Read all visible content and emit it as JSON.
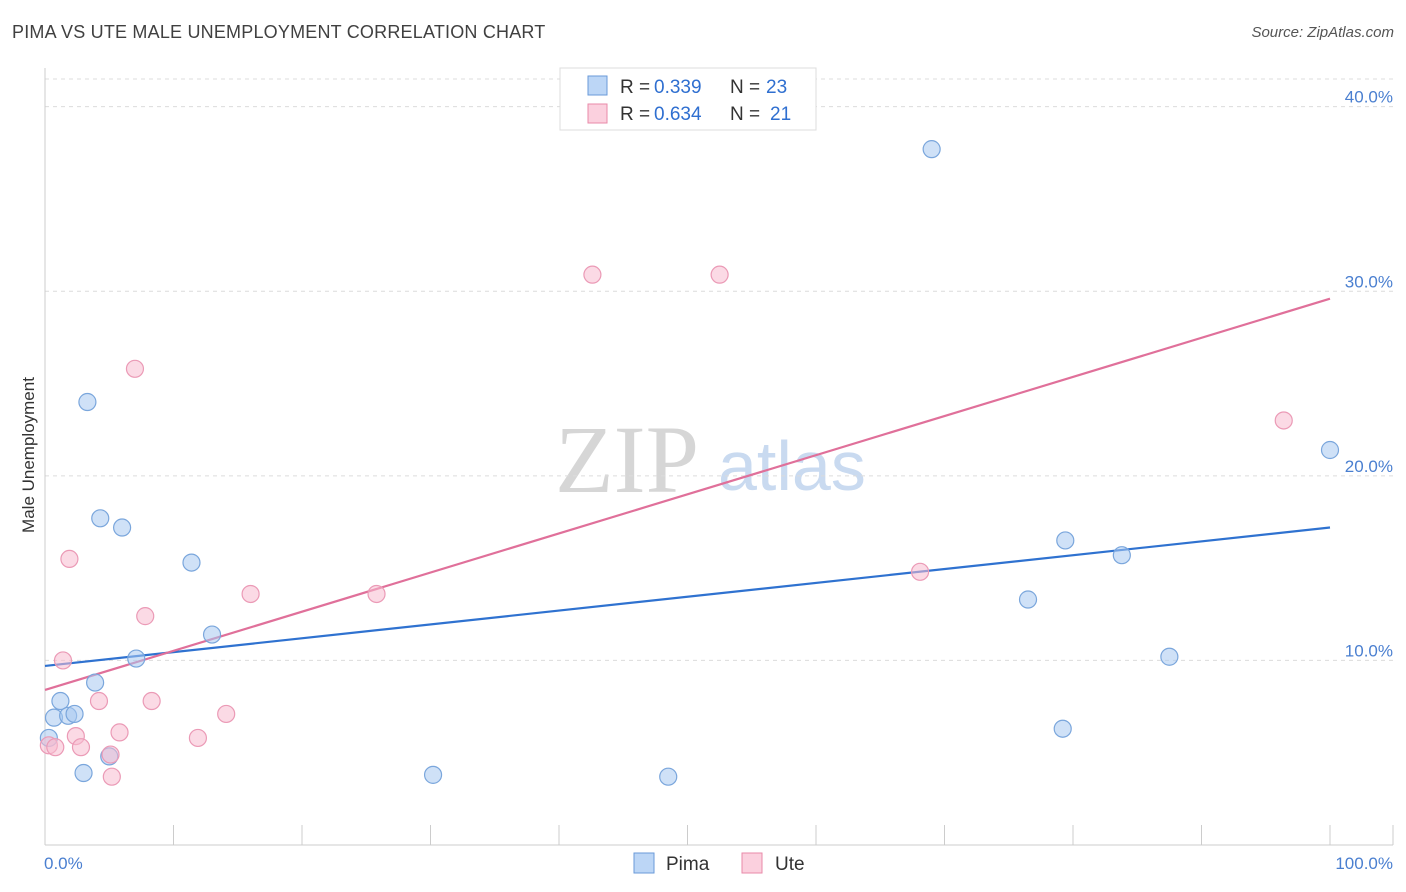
{
  "header": {
    "title": "PIMA VS UTE MALE UNEMPLOYMENT CORRELATION CHART",
    "source": "Source: ZipAtlas.com"
  },
  "watermark": {
    "zip": "ZIP",
    "atlas": "atlas"
  },
  "chart_data": {
    "type": "scatter",
    "title": "PIMA VS UTE MALE UNEMPLOYMENT CORRELATION CHART",
    "xlabel": "",
    "ylabel": "Male Unemployment",
    "xlim": [
      0,
      100
    ],
    "ylim": [
      0,
      41.5
    ],
    "x_tick_labels": [
      "0.0%",
      "100.0%"
    ],
    "y_ticks": [
      10,
      20,
      30,
      40
    ],
    "y_tick_labels": [
      "10.0%",
      "20.0%",
      "30.0%",
      "40.0%"
    ],
    "grid": true,
    "legend_position": "top-center",
    "legend": [
      {
        "name": "Pima",
        "r_label": "R =",
        "r": "0.339",
        "n_label": "N =",
        "n": "23",
        "color": "#a8c8f0",
        "stroke": "#6a9ad8"
      },
      {
        "name": "Ute",
        "r_label": "R =",
        "r": "0.634",
        "n_label": "N =",
        "n": "21",
        "color": "#f8bcd0",
        "stroke": "#e88aa8"
      }
    ],
    "series": [
      {
        "name": "Pima",
        "color": "#a8c8f0",
        "line_color": "#2f72d0",
        "trend": {
          "x": [
            0,
            100
          ],
          "y": [
            9.7,
            17.2
          ]
        },
        "points": [
          {
            "x": 0.3,
            "y": 5.8
          },
          {
            "x": 0.7,
            "y": 6.9
          },
          {
            "x": 1.2,
            "y": 7.8
          },
          {
            "x": 1.8,
            "y": 7.0
          },
          {
            "x": 2.3,
            "y": 7.1
          },
          {
            "x": 3.0,
            "y": 3.9
          },
          {
            "x": 3.3,
            "y": 24.0
          },
          {
            "x": 3.9,
            "y": 8.8
          },
          {
            "x": 4.3,
            "y": 17.7
          },
          {
            "x": 5.0,
            "y": 4.8
          },
          {
            "x": 6.0,
            "y": 17.2
          },
          {
            "x": 7.1,
            "y": 10.1
          },
          {
            "x": 11.4,
            "y": 15.3
          },
          {
            "x": 13.0,
            "y": 11.4
          },
          {
            "x": 30.2,
            "y": 3.8
          },
          {
            "x": 48.5,
            "y": 3.7
          },
          {
            "x": 69.0,
            "y": 37.7
          },
          {
            "x": 76.5,
            "y": 13.3
          },
          {
            "x": 79.2,
            "y": 6.3
          },
          {
            "x": 79.4,
            "y": 16.5
          },
          {
            "x": 83.8,
            "y": 15.7
          },
          {
            "x": 87.5,
            "y": 10.2
          },
          {
            "x": 100.0,
            "y": 21.4
          }
        ]
      },
      {
        "name": "Ute",
        "color": "#f8bcd0",
        "line_color": "#e0709a",
        "trend": {
          "x": [
            0,
            100
          ],
          "y": [
            8.4,
            29.6
          ]
        },
        "points": [
          {
            "x": 0.3,
            "y": 5.4
          },
          {
            "x": 0.8,
            "y": 5.3
          },
          {
            "x": 1.4,
            "y": 10.0
          },
          {
            "x": 1.9,
            "y": 15.5
          },
          {
            "x": 2.4,
            "y": 5.9
          },
          {
            "x": 2.8,
            "y": 5.3
          },
          {
            "x": 4.2,
            "y": 7.8
          },
          {
            "x": 5.1,
            "y": 4.9
          },
          {
            "x": 5.2,
            "y": 3.7
          },
          {
            "x": 5.8,
            "y": 6.1
          },
          {
            "x": 7.0,
            "y": 25.8
          },
          {
            "x": 7.8,
            "y": 12.4
          },
          {
            "x": 8.3,
            "y": 7.8
          },
          {
            "x": 11.9,
            "y": 5.8
          },
          {
            "x": 14.1,
            "y": 7.1
          },
          {
            "x": 16.0,
            "y": 13.6
          },
          {
            "x": 25.8,
            "y": 13.6
          },
          {
            "x": 42.6,
            "y": 30.9
          },
          {
            "x": 52.5,
            "y": 30.9
          },
          {
            "x": 68.1,
            "y": 14.8
          },
          {
            "x": 96.4,
            "y": 23.0
          }
        ]
      }
    ]
  }
}
